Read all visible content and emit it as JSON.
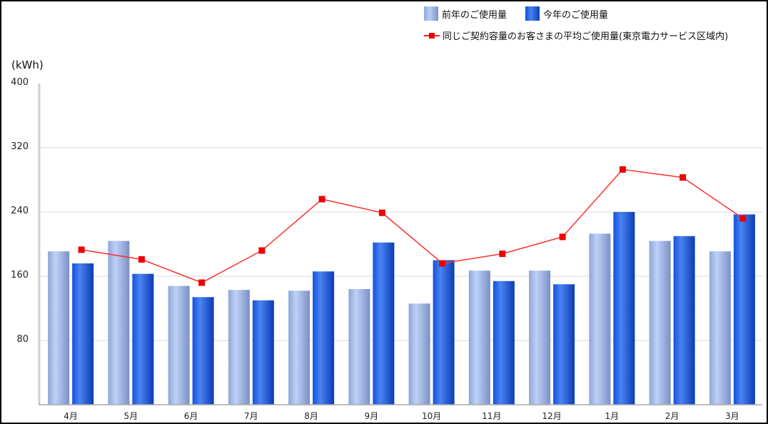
{
  "unit_label": "(kWh)",
  "legend": {
    "prev_label": "前年のご使用量",
    "curr_label": "今年のご使用量",
    "avg_label": "同じご契約容量のお客さまの平均ご使用量(東京電力サービス区域内)"
  },
  "colors": {
    "prev": "#9fb6e6",
    "curr": "#1f5ee0",
    "avg": "#ff0000",
    "grid": "#e6e6e6"
  },
  "chart_data": {
    "type": "bar",
    "title": "",
    "xlabel": "",
    "ylabel": "(kWh)",
    "ylim": [
      0,
      400
    ],
    "yticks": [
      80,
      160,
      240,
      320,
      400
    ],
    "grid": true,
    "legend_position": "top-right",
    "categories": [
      "4月",
      "5月",
      "6月",
      "7月",
      "8月",
      "9月",
      "10月",
      "11月",
      "12月",
      "1月",
      "2月",
      "3月"
    ],
    "series": [
      {
        "name": "前年のご使用量",
        "type": "bar",
        "values": [
          191,
          204,
          148,
          143,
          142,
          144,
          126,
          167,
          167,
          213,
          204,
          191
        ]
      },
      {
        "name": "今年のご使用量",
        "type": "bar",
        "values": [
          176,
          163,
          134,
          130,
          166,
          202,
          180,
          154,
          150,
          240,
          210,
          237
        ]
      },
      {
        "name": "同じご契約容量のお客さまの平均ご使用量(東京電力サービス区域内)",
        "type": "line",
        "values": [
          193,
          181,
          152,
          192,
          256,
          239,
          176,
          188,
          209,
          293,
          283,
          232
        ]
      }
    ]
  }
}
